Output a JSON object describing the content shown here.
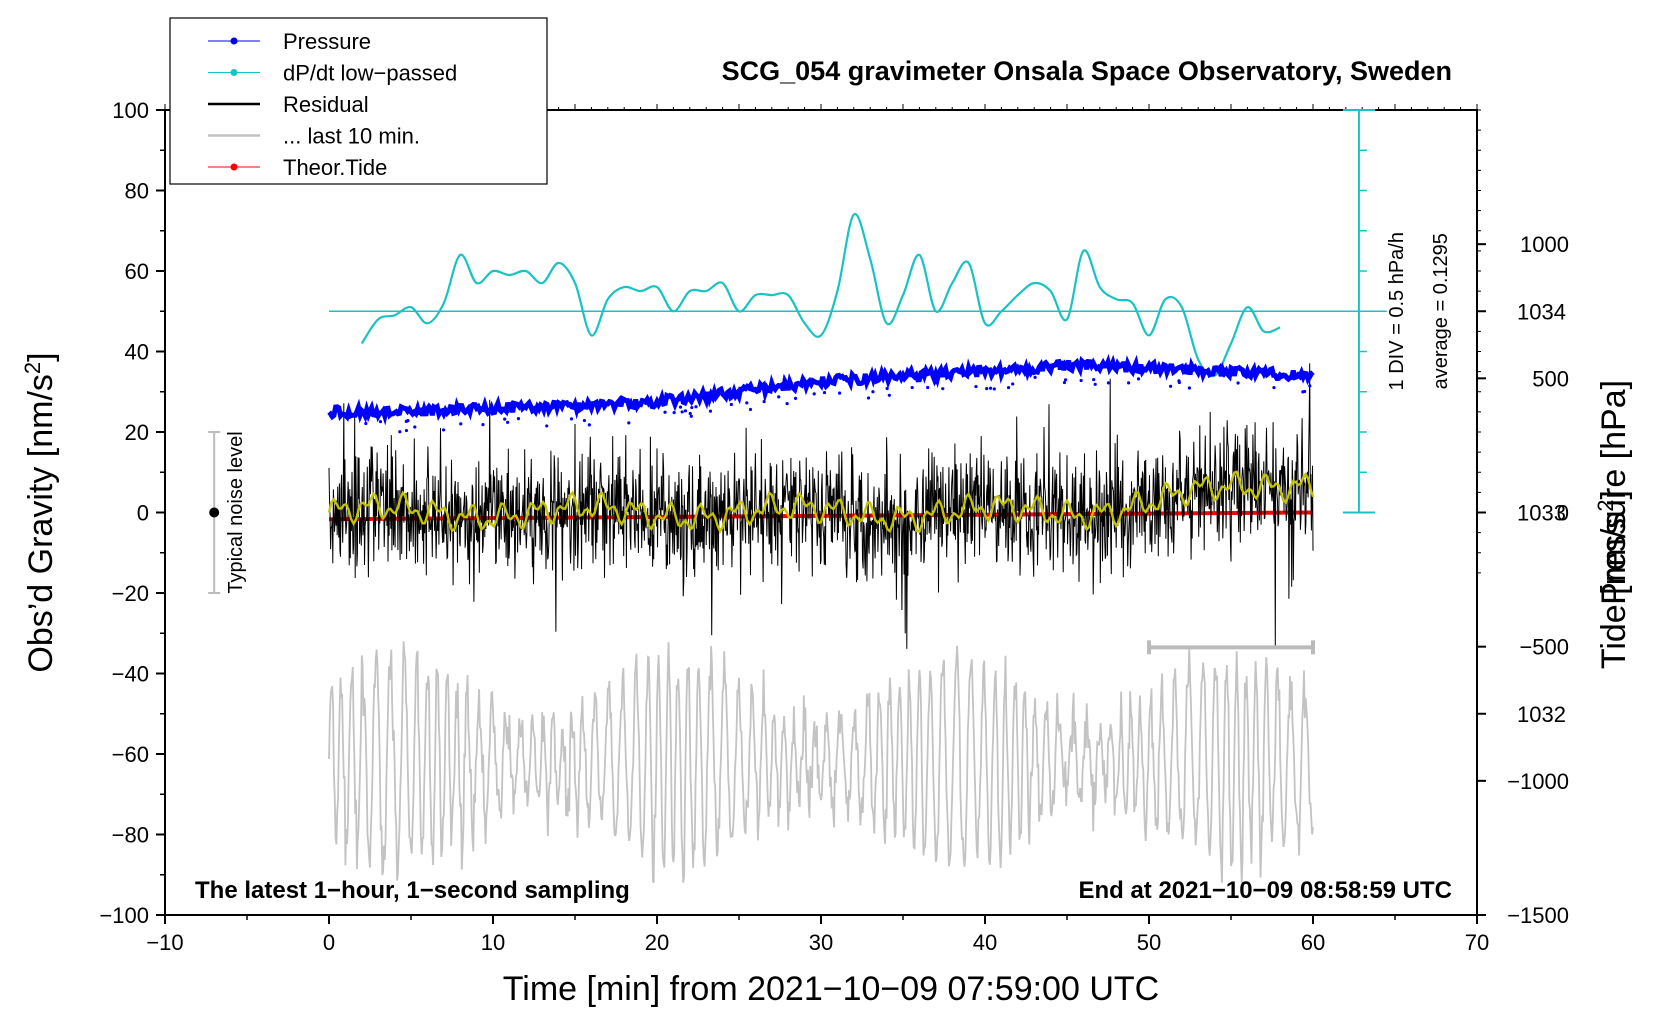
{
  "chart_data": {
    "type": "line",
    "title": "SCG_054 gravimeter Onsala Space Observatory, Sweden",
    "xlabel": "Time [min] from 2021−10−09 07:59:00 UTC",
    "ylabel_left": "Obs’d Gravity [nm/s",
    "ylabel_left_sup": "2",
    "ylabel_left_end": "]",
    "ylabel_right_pressure": "Pressure [hPa]",
    "ylabel_right_tide": "Tide [nm/s",
    "ylabel_right_tide_sup": "2",
    "ylabel_right_tide_end": "]",
    "xlim": [
      -10,
      70
    ],
    "ylim_left": [
      -100,
      100
    ],
    "pressure_range": [
      1031.0,
      1035.0
    ],
    "tide_range": [
      -1500,
      1500
    ],
    "x_ticks": [
      -10,
      0,
      10,
      20,
      30,
      40,
      50,
      60,
      70
    ],
    "x_tick_labels": [
      "−10",
      "0",
      "10",
      "20",
      "30",
      "40",
      "50",
      "60",
      "70"
    ],
    "y_left_ticks": [
      -100,
      -80,
      -60,
      -40,
      -20,
      0,
      20,
      40,
      60,
      80,
      100
    ],
    "y_left_tick_labels": [
      "−100",
      "−80",
      "−60",
      "−40",
      "−20",
      "0",
      "20",
      "40",
      "60",
      "80",
      "100"
    ],
    "pressure_ticks": [
      1032,
      1033,
      1034
    ],
    "pressure_tick_labels": [
      "1032",
      "1033",
      "1034"
    ],
    "tide_ticks": [
      -1500,
      -1000,
      -500,
      0,
      500,
      1000
    ],
    "tide_tick_labels": [
      "−1500",
      "−1000",
      "−500",
      "0",
      "500",
      "1000"
    ],
    "legend": [
      "Pressure",
      "dP/dt low−passed",
      "Residual",
      "... last 10 min.",
      "Theor.Tide"
    ],
    "legend_position": "top-left",
    "annotations": {
      "bottom_left": "The latest 1−hour, 1−second sampling",
      "bottom_right": "End at 2021−10−09 08:58:59 UTC",
      "noise": "Typical noise level",
      "dpdt_scale": "1 DIV = 0.5 hPa/h",
      "dpdt_average": "average = 0.1295"
    },
    "noise_bar": {
      "x": -7,
      "y_center": 0,
      "half_range": 20
    },
    "last10_bar": {
      "x_start": 50,
      "x_end": 60
    },
    "series": [
      {
        "name": "Pressure",
        "color": "#0000ff",
        "axis": "pressure",
        "x": [
          0,
          5,
          10,
          15,
          20,
          25,
          30,
          35,
          40,
          45,
          50,
          55,
          60
        ],
        "values": [
          1033.5,
          1033.5,
          1033.52,
          1033.53,
          1033.55,
          1033.6,
          1033.65,
          1033.68,
          1033.7,
          1033.73,
          1033.72,
          1033.7,
          1033.68
        ]
      },
      {
        "name": "dP/dt low−passed",
        "color": "#19c3c3",
        "axis": "left",
        "x": [
          2,
          3,
          4,
          5,
          6,
          7,
          8,
          9,
          10,
          11,
          12,
          13,
          14,
          15,
          16,
          17,
          18,
          19,
          20,
          21,
          22,
          23,
          24,
          25,
          26,
          27,
          28,
          29,
          30,
          31,
          32,
          33,
          34,
          35,
          36,
          37,
          38,
          39,
          40,
          41,
          42,
          43,
          44,
          45,
          46,
          47,
          48,
          49,
          50,
          51,
          52,
          53,
          54,
          55,
          56,
          57,
          58
        ],
        "values": [
          42,
          48,
          49,
          51,
          47,
          52,
          64,
          57,
          60,
          59,
          60,
          57,
          62,
          57,
          44,
          53,
          56,
          55,
          56,
          50,
          55,
          55,
          57,
          50,
          54,
          54,
          54,
          47,
          44,
          55,
          74,
          63,
          47,
          54,
          64,
          50,
          57,
          62,
          47,
          50,
          54,
          57,
          55,
          48,
          65,
          56,
          53,
          52,
          44,
          53,
          51,
          38,
          34,
          42,
          51,
          45,
          46
        ]
      },
      {
        "name": "Residual",
        "color": "#000000",
        "axis": "left",
        "x_range": [
          0,
          60
        ],
        "envelope": [
          -25,
          25
        ]
      },
      {
        "name": "... last 10 min.",
        "color": "#c3c3c3",
        "axis": "left",
        "x_range": [
          0,
          60
        ],
        "envelope": [
          -90,
          -35
        ]
      },
      {
        "name": "Theor.Tide",
        "color": "#ff0000",
        "axis": "tide",
        "x": [
          0,
          60
        ],
        "values": [
          -25,
          0
        ]
      }
    ],
    "colors": {
      "smoothed_residual": "#c3c300",
      "dpdt_axis": "#19c3c3"
    }
  }
}
